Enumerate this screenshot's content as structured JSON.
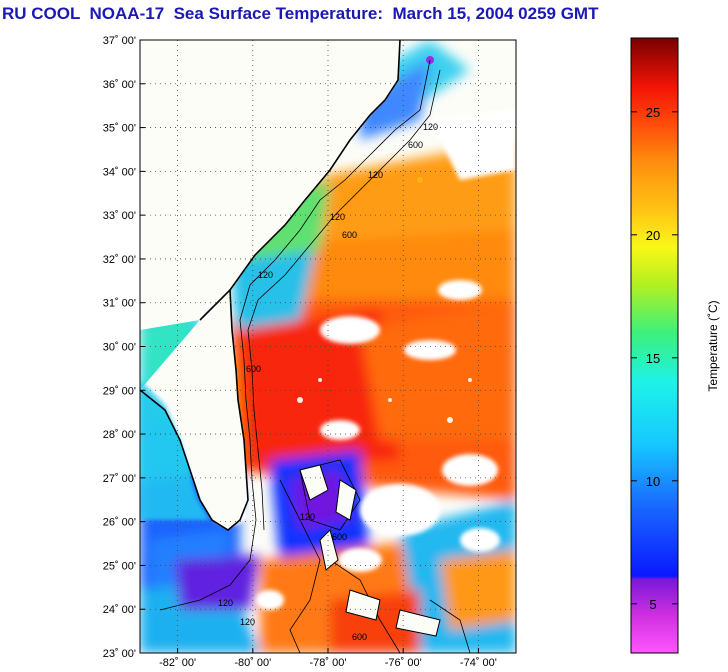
{
  "title": "RU COOL  NOAA-17  Sea Surface Temperature:  March 15, 2004 0259 GMT",
  "map": {
    "lat_labels": [
      "37˚ 00'",
      "36˚ 00'",
      "35˚ 00'",
      "34˚ 00'",
      "33˚ 00'",
      "32˚ 00'",
      "31˚ 00'",
      "30˚ 00'",
      "29˚ 00'",
      "28˚ 00'",
      "27˚ 00'",
      "26˚ 00'",
      "25˚ 00'",
      "24˚ 00'",
      "23˚ 00'"
    ],
    "lon_labels": [
      "-82˚ 00'",
      "-80˚ 00'",
      "-78˚ 00'",
      "-76˚ 00'",
      "-74˚ 00'"
    ],
    "lat_range": [
      23,
      37
    ],
    "lon_range": [
      -83,
      -73
    ],
    "isobath_labels": [
      "120",
      "600",
      "120",
      "600",
      "120",
      "120",
      "600",
      "120",
      "600",
      "120",
      "120",
      "600"
    ]
  },
  "colorbar": {
    "title": "Temperature (˚C)",
    "ticks": [
      "5",
      "10",
      "15",
      "20",
      "25"
    ],
    "tick_values": [
      5,
      10,
      15,
      20,
      25
    ],
    "range": [
      3,
      28
    ]
  },
  "colors": {
    "title": "#1c18b4",
    "land": "#fdfdf8",
    "cloud": "#ffffff"
  }
}
